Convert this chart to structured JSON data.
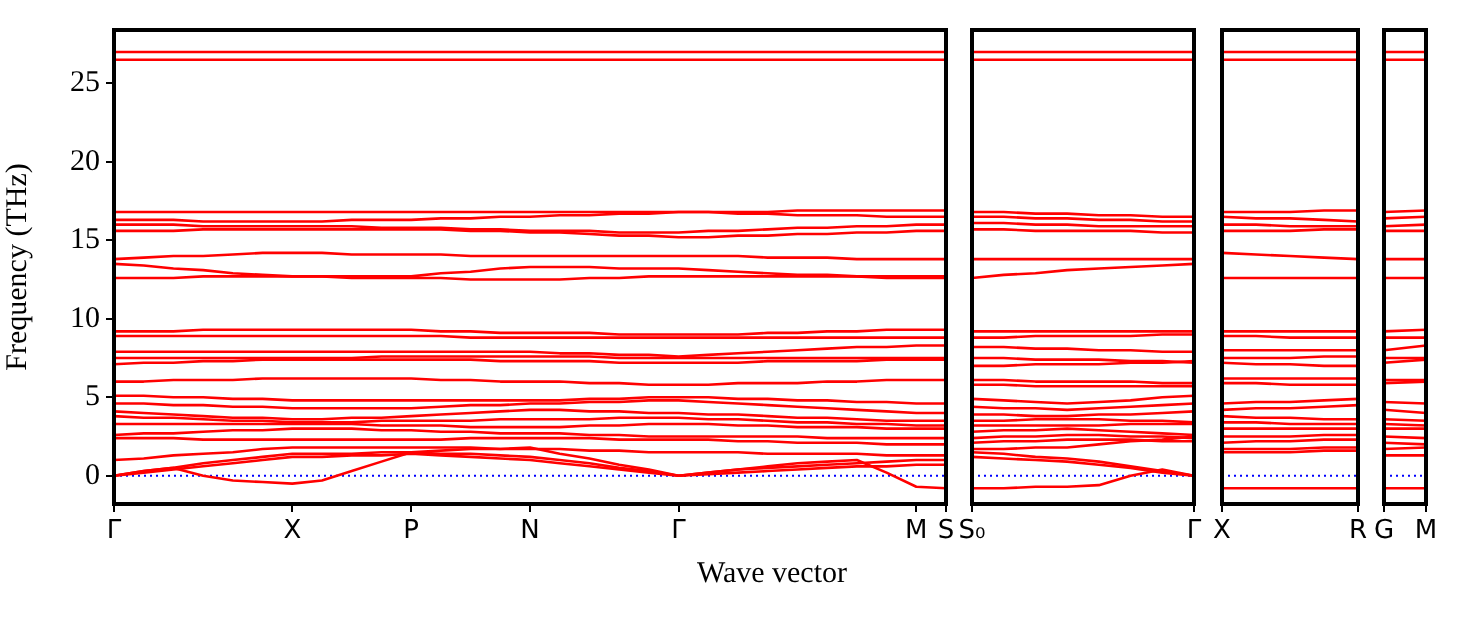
{
  "chart_data": [
    {
      "type": "line",
      "ylabel": "Frequency (THz)",
      "xlabel": "Wave vector",
      "marker": "none",
      "line_style": "solid",
      "ylim": [
        -1.8,
        28.4
      ],
      "yticks": [
        0,
        5,
        10,
        15,
        20,
        25
      ],
      "categories": [
        "Γ",
        null,
        null,
        null,
        null,
        null,
        "X",
        null,
        null,
        null,
        "P",
        null,
        null,
        null,
        "N",
        null,
        null,
        null,
        null,
        "Γ",
        null,
        null,
        null,
        null,
        null,
        null,
        null,
        "M",
        "S"
      ],
      "ref_lines": [
        {
          "axis": "y",
          "value": 0,
          "color": "#0000ff",
          "line_style": "dotted"
        }
      ],
      "series": [
        {
          "color": "#ff0000",
          "values": [
            27.0,
            27.0,
            27.0,
            27.0,
            27.0,
            27.0,
            27.0,
            27.0,
            27.0,
            27.0,
            27.0,
            27.0,
            27.0,
            27.0,
            27.0,
            27.0,
            27.0,
            27.0,
            27.0,
            27.0,
            27.0,
            27.0,
            27.0,
            27.0,
            27.0,
            27.0,
            27.0,
            27.0,
            27.0
          ]
        },
        {
          "color": "#ff0000",
          "values": [
            26.5,
            26.5,
            26.5,
            26.5,
            26.5,
            26.5,
            26.5,
            26.5,
            26.5,
            26.5,
            26.5,
            26.5,
            26.5,
            26.5,
            26.5,
            26.5,
            26.5,
            26.5,
            26.5,
            26.5,
            26.5,
            26.5,
            26.5,
            26.5,
            26.5,
            26.5,
            26.5,
            26.5,
            26.5
          ]
        },
        {
          "color": "#ff0000",
          "values": [
            16.8,
            16.8,
            16.8,
            16.8,
            16.8,
            16.8,
            16.8,
            16.8,
            16.8,
            16.8,
            16.8,
            16.8,
            16.8,
            16.8,
            16.8,
            16.8,
            16.8,
            16.8,
            16.8,
            16.8,
            16.8,
            16.8,
            16.8,
            16.9,
            16.9,
            16.9,
            16.9,
            16.9,
            16.9
          ]
        },
        {
          "color": "#ff0000",
          "values": [
            16.3,
            16.3,
            16.3,
            16.2,
            16.2,
            16.2,
            16.2,
            16.2,
            16.3,
            16.3,
            16.3,
            16.4,
            16.4,
            16.5,
            16.5,
            16.6,
            16.6,
            16.7,
            16.7,
            16.8,
            16.8,
            16.7,
            16.7,
            16.6,
            16.6,
            16.6,
            16.5,
            16.5,
            16.5
          ]
        },
        {
          "color": "#ff0000",
          "values": [
            16.0,
            16.0,
            16.0,
            15.9,
            15.9,
            15.9,
            15.9,
            15.9,
            15.9,
            15.8,
            15.8,
            15.8,
            15.7,
            15.7,
            15.6,
            15.6,
            15.6,
            15.5,
            15.5,
            15.5,
            15.6,
            15.6,
            15.7,
            15.8,
            15.8,
            15.9,
            15.9,
            16.0,
            16.0
          ]
        },
        {
          "color": "#ff0000",
          "values": [
            15.6,
            15.6,
            15.6,
            15.7,
            15.7,
            15.7,
            15.7,
            15.7,
            15.7,
            15.7,
            15.7,
            15.7,
            15.6,
            15.6,
            15.5,
            15.5,
            15.4,
            15.3,
            15.3,
            15.2,
            15.2,
            15.3,
            15.3,
            15.4,
            15.4,
            15.5,
            15.5,
            15.6,
            15.6
          ]
        },
        {
          "color": "#ff0000",
          "values": [
            13.8,
            13.9,
            14.0,
            14.0,
            14.1,
            14.2,
            14.2,
            14.2,
            14.1,
            14.1,
            14.1,
            14.1,
            14.0,
            14.0,
            14.0,
            14.0,
            14.0,
            14.0,
            14.0,
            14.0,
            14.0,
            14.0,
            13.9,
            13.9,
            13.9,
            13.8,
            13.8,
            13.8,
            13.8
          ]
        },
        {
          "color": "#ff0000",
          "values": [
            13.5,
            13.4,
            13.2,
            13.1,
            12.9,
            12.8,
            12.7,
            12.7,
            12.7,
            12.7,
            12.7,
            12.9,
            13.0,
            13.2,
            13.3,
            13.3,
            13.3,
            13.2,
            13.2,
            13.2,
            13.1,
            13.0,
            12.9,
            12.8,
            12.8,
            12.7,
            12.6,
            12.6,
            12.6
          ]
        },
        {
          "color": "#ff0000",
          "values": [
            12.6,
            12.6,
            12.6,
            12.7,
            12.7,
            12.7,
            12.7,
            12.7,
            12.6,
            12.6,
            12.6,
            12.6,
            12.5,
            12.5,
            12.5,
            12.5,
            12.6,
            12.6,
            12.7,
            12.7,
            12.7,
            12.7,
            12.7,
            12.7,
            12.7,
            12.7,
            12.7,
            12.7,
            12.7
          ]
        },
        {
          "color": "#ff0000",
          "values": [
            9.2,
            9.2,
            9.2,
            9.3,
            9.3,
            9.3,
            9.3,
            9.3,
            9.3,
            9.3,
            9.3,
            9.2,
            9.2,
            9.1,
            9.1,
            9.1,
            9.1,
            9.0,
            9.0,
            9.0,
            9.0,
            9.0,
            9.1,
            9.1,
            9.2,
            9.2,
            9.3,
            9.3,
            9.3
          ]
        },
        {
          "color": "#ff0000",
          "values": [
            8.9,
            8.9,
            8.9,
            8.9,
            8.9,
            8.9,
            8.9,
            8.9,
            8.9,
            8.9,
            8.9,
            8.9,
            8.8,
            8.8,
            8.8,
            8.8,
            8.8,
            8.8,
            8.8,
            8.8,
            8.8,
            8.8,
            8.8,
            8.8,
            8.8,
            8.8,
            8.8,
            8.8,
            8.8
          ]
        },
        {
          "color": "#ff0000",
          "values": [
            7.9,
            7.9,
            7.9,
            7.9,
            7.9,
            7.9,
            7.9,
            7.9,
            7.9,
            7.9,
            7.9,
            7.9,
            7.9,
            7.9,
            7.9,
            7.8,
            7.8,
            7.7,
            7.7,
            7.6,
            7.7,
            7.8,
            7.9,
            8.0,
            8.1,
            8.2,
            8.2,
            8.3,
            8.3
          ]
        },
        {
          "color": "#ff0000",
          "values": [
            7.5,
            7.5,
            7.5,
            7.5,
            7.5,
            7.5,
            7.5,
            7.5,
            7.5,
            7.6,
            7.6,
            7.6,
            7.6,
            7.6,
            7.6,
            7.6,
            7.6,
            7.5,
            7.5,
            7.5,
            7.5,
            7.5,
            7.5,
            7.5,
            7.5,
            7.5,
            7.5,
            7.5,
            7.5
          ]
        },
        {
          "color": "#ff0000",
          "values": [
            7.1,
            7.2,
            7.2,
            7.3,
            7.3,
            7.4,
            7.4,
            7.4,
            7.4,
            7.4,
            7.4,
            7.4,
            7.4,
            7.3,
            7.3,
            7.3,
            7.3,
            7.2,
            7.2,
            7.2,
            7.2,
            7.2,
            7.3,
            7.3,
            7.3,
            7.3,
            7.4,
            7.4,
            7.4
          ]
        },
        {
          "color": "#ff0000",
          "values": [
            6.0,
            6.0,
            6.1,
            6.1,
            6.1,
            6.2,
            6.2,
            6.2,
            6.2,
            6.2,
            6.2,
            6.1,
            6.1,
            6.0,
            6.0,
            6.0,
            5.9,
            5.9,
            5.8,
            5.8,
            5.8,
            5.9,
            5.9,
            5.9,
            6.0,
            6.0,
            6.1,
            6.1,
            6.1
          ]
        },
        {
          "color": "#ff0000",
          "values": [
            5.1,
            5.1,
            5.0,
            5.0,
            4.9,
            4.9,
            4.8,
            4.8,
            4.8,
            4.8,
            4.8,
            4.8,
            4.8,
            4.8,
            4.8,
            4.8,
            4.9,
            4.9,
            5.0,
            5.0,
            5.0,
            4.9,
            4.9,
            4.8,
            4.8,
            4.7,
            4.7,
            4.6,
            4.6
          ]
        },
        {
          "color": "#ff0000",
          "values": [
            4.6,
            4.6,
            4.5,
            4.5,
            4.4,
            4.4,
            4.3,
            4.3,
            4.3,
            4.3,
            4.3,
            4.4,
            4.5,
            4.5,
            4.6,
            4.6,
            4.7,
            4.7,
            4.8,
            4.8,
            4.7,
            4.6,
            4.5,
            4.4,
            4.3,
            4.2,
            4.1,
            4.0,
            4.0
          ]
        },
        {
          "color": "#ff0000",
          "values": [
            4.1,
            4.0,
            3.9,
            3.8,
            3.7,
            3.7,
            3.6,
            3.6,
            3.7,
            3.7,
            3.8,
            3.9,
            4.0,
            4.1,
            4.2,
            4.2,
            4.1,
            4.1,
            4.0,
            4.0,
            3.9,
            3.9,
            3.8,
            3.7,
            3.7,
            3.6,
            3.5,
            3.5,
            3.5
          ]
        },
        {
          "color": "#ff0000",
          "values": [
            3.8,
            3.7,
            3.7,
            3.6,
            3.5,
            3.5,
            3.4,
            3.4,
            3.4,
            3.5,
            3.5,
            3.5,
            3.5,
            3.6,
            3.6,
            3.6,
            3.6,
            3.7,
            3.7,
            3.7,
            3.6,
            3.6,
            3.5,
            3.4,
            3.4,
            3.3,
            3.3,
            3.2,
            3.2
          ]
        },
        {
          "color": "#ff0000",
          "values": [
            3.3,
            3.3,
            3.3,
            3.3,
            3.3,
            3.3,
            3.3,
            3.3,
            3.3,
            3.2,
            3.2,
            3.2,
            3.1,
            3.1,
            3.1,
            3.1,
            3.2,
            3.2,
            3.3,
            3.3,
            3.3,
            3.2,
            3.2,
            3.1,
            3.1,
            3.1,
            3.0,
            3.0,
            3.0
          ]
        },
        {
          "color": "#ff0000",
          "values": [
            2.6,
            2.7,
            2.7,
            2.8,
            2.9,
            2.9,
            3.0,
            3.0,
            3.0,
            2.9,
            2.9,
            2.8,
            2.8,
            2.7,
            2.7,
            2.7,
            2.6,
            2.6,
            2.5,
            2.5,
            2.5,
            2.5,
            2.5,
            2.5,
            2.4,
            2.4,
            2.4,
            2.4,
            2.4
          ]
        },
        {
          "color": "#ff0000",
          "values": [
            2.4,
            2.4,
            2.4,
            2.3,
            2.3,
            2.3,
            2.3,
            2.3,
            2.3,
            2.3,
            2.3,
            2.3,
            2.4,
            2.4,
            2.4,
            2.4,
            2.4,
            2.3,
            2.3,
            2.3,
            2.3,
            2.2,
            2.2,
            2.1,
            2.1,
            2.1,
            2.0,
            2.0,
            2.0
          ]
        },
        {
          "color": "#ff0000",
          "values": [
            1.0,
            1.1,
            1.3,
            1.4,
            1.5,
            1.7,
            1.8,
            1.8,
            1.8,
            1.8,
            1.8,
            1.8,
            1.8,
            1.7,
            1.7,
            1.7,
            1.6,
            1.6,
            1.5,
            1.5,
            1.5,
            1.5,
            1.4,
            1.4,
            1.4,
            1.4,
            1.3,
            1.3,
            1.3
          ]
        },
        {
          "color": "#ff0000",
          "values": [
            0,
            0.3,
            0.5,
            0.8,
            1.0,
            1.2,
            1.4,
            1.4,
            1.4,
            1.5,
            1.5,
            1.4,
            1.4,
            1.3,
            1.2,
            1.0,
            0.8,
            0.5,
            0.3,
            0,
            0.2,
            0.4,
            0.5,
            0.6,
            0.7,
            0.8,
            0.9,
            1.0,
            1.0
          ]
        },
        {
          "color": "#ff0000",
          "values": [
            0,
            0.2,
            0.4,
            0.6,
            0.8,
            1.0,
            1.2,
            1.2,
            1.3,
            1.3,
            1.4,
            1.3,
            1.2,
            1.1,
            1.0,
            0.8,
            0.6,
            0.4,
            0.2,
            0,
            0.1,
            0.2,
            0.3,
            0.4,
            0.5,
            0.6,
            0.6,
            0.7,
            0.7
          ]
        },
        {
          "color": "#ff0000",
          "values": [
            0,
            0.3,
            0.5,
            0.0,
            -0.3,
            -0.4,
            -0.5,
            -0.3,
            0.3,
            0.9,
            1.5,
            1.6,
            1.7,
            1.7,
            1.8,
            1.4,
            1.1,
            0.7,
            0.4,
            0,
            0.2,
            0.4,
            0.6,
            0.8,
            0.9,
            1.0,
            0.2,
            -0.7,
            -0.8
          ]
        }
      ]
    },
    {
      "type": "line",
      "marker": "none",
      "line_style": "solid",
      "tick_labels": "x",
      "ylim": [
        -1.8,
        28.4
      ],
      "categories": [
        "S₀",
        null,
        null,
        null,
        null,
        null,
        null,
        "Γ"
      ],
      "ref_lines": [
        {
          "axis": "y",
          "value": 0,
          "color": "#0000ff",
          "line_style": "dotted"
        }
      ],
      "series": [
        {
          "color": "#ff0000",
          "values": [
            27.0,
            27.0,
            27.0,
            27.0,
            27.0,
            27.0,
            27.0,
            27.0
          ]
        },
        {
          "color": "#ff0000",
          "values": [
            26.5,
            26.5,
            26.5,
            26.5,
            26.5,
            26.5,
            26.5,
            26.5
          ]
        },
        {
          "color": "#ff0000",
          "values": [
            16.8,
            16.8,
            16.7,
            16.7,
            16.6,
            16.6,
            16.5,
            16.5
          ]
        },
        {
          "color": "#ff0000",
          "values": [
            16.5,
            16.5,
            16.4,
            16.4,
            16.3,
            16.3,
            16.2,
            16.2
          ]
        },
        {
          "color": "#ff0000",
          "values": [
            16.1,
            16.1,
            16.0,
            16.0,
            15.9,
            15.9,
            15.9,
            15.9
          ]
        },
        {
          "color": "#ff0000",
          "values": [
            15.7,
            15.7,
            15.6,
            15.6,
            15.6,
            15.6,
            15.5,
            15.5
          ]
        },
        {
          "color": "#ff0000",
          "values": [
            13.8,
            13.8,
            13.8,
            13.8,
            13.8,
            13.8,
            13.8,
            13.8
          ]
        },
        {
          "color": "#ff0000",
          "values": [
            12.6,
            12.8,
            12.9,
            13.1,
            13.2,
            13.3,
            13.4,
            13.5
          ]
        },
        {
          "color": "#ff0000",
          "values": [
            9.2,
            9.2,
            9.2,
            9.2,
            9.2,
            9.2,
            9.2,
            9.2
          ]
        },
        {
          "color": "#ff0000",
          "values": [
            8.8,
            8.8,
            8.9,
            8.9,
            8.9,
            8.9,
            9.0,
            9.0
          ]
        },
        {
          "color": "#ff0000",
          "values": [
            8.2,
            8.2,
            8.1,
            8.1,
            8.0,
            8.0,
            7.9,
            7.9
          ]
        },
        {
          "color": "#ff0000",
          "values": [
            7.5,
            7.5,
            7.4,
            7.4,
            7.4,
            7.3,
            7.3,
            7.2
          ]
        },
        {
          "color": "#ff0000",
          "values": [
            7.0,
            7.0,
            7.1,
            7.1,
            7.1,
            7.2,
            7.2,
            7.3
          ]
        },
        {
          "color": "#ff0000",
          "values": [
            6.1,
            6.1,
            6.0,
            6.0,
            6.0,
            6.0,
            5.9,
            5.9
          ]
        },
        {
          "color": "#ff0000",
          "values": [
            5.8,
            5.8,
            5.7,
            5.7,
            5.7,
            5.7,
            5.7,
            5.7
          ]
        },
        {
          "color": "#ff0000",
          "values": [
            4.9,
            4.8,
            4.7,
            4.6,
            4.7,
            4.8,
            5.0,
            5.1
          ]
        },
        {
          "color": "#ff0000",
          "values": [
            4.4,
            4.3,
            4.3,
            4.2,
            4.3,
            4.4,
            4.5,
            4.6
          ]
        },
        {
          "color": "#ff0000",
          "values": [
            3.9,
            3.9,
            3.8,
            3.8,
            3.9,
            3.9,
            4.0,
            4.1
          ]
        },
        {
          "color": "#ff0000",
          "values": [
            3.5,
            3.5,
            3.6,
            3.6,
            3.6,
            3.5,
            3.5,
            3.4
          ]
        },
        {
          "color": "#ff0000",
          "values": [
            3.2,
            3.2,
            3.2,
            3.2,
            3.2,
            3.3,
            3.3,
            3.3
          ]
        },
        {
          "color": "#ff0000",
          "values": [
            2.8,
            2.9,
            2.9,
            3.0,
            2.9,
            2.8,
            2.7,
            2.6
          ]
        },
        {
          "color": "#ff0000",
          "values": [
            2.4,
            2.5,
            2.5,
            2.6,
            2.6,
            2.5,
            2.5,
            2.4
          ]
        },
        {
          "color": "#ff0000",
          "values": [
            2.1,
            2.2,
            2.2,
            2.3,
            2.3,
            2.3,
            2.2,
            2.2
          ]
        },
        {
          "color": "#ff0000",
          "values": [
            1.7,
            1.7,
            1.8,
            1.8,
            2.0,
            2.2,
            2.3,
            2.5
          ]
        },
        {
          "color": "#ff0000",
          "values": [
            1.5,
            1.4,
            1.2,
            1.1,
            0.9,
            0.6,
            0.3,
            0
          ]
        },
        {
          "color": "#ff0000",
          "values": [
            1.2,
            1.1,
            1.0,
            0.9,
            0.7,
            0.5,
            0.2,
            0
          ]
        },
        {
          "color": "#ff0000",
          "values": [
            -0.8,
            -0.8,
            -0.7,
            -0.7,
            -0.6,
            0,
            0.4,
            0
          ]
        }
      ]
    },
    {
      "type": "line",
      "marker": "none",
      "line_style": "solid",
      "tick_labels": "x",
      "ylim": [
        -1.8,
        28.4
      ],
      "categories": [
        "X",
        null,
        null,
        null,
        "R"
      ],
      "ref_lines": [
        {
          "axis": "y",
          "value": 0,
          "color": "#0000ff",
          "line_style": "dotted"
        }
      ],
      "series": [
        {
          "color": "#ff0000",
          "values": [
            27.0,
            27.0,
            27.0,
            27.0,
            27.0
          ]
        },
        {
          "color": "#ff0000",
          "values": [
            26.5,
            26.5,
            26.5,
            26.5,
            26.5
          ]
        },
        {
          "color": "#ff0000",
          "values": [
            16.8,
            16.8,
            16.8,
            16.9,
            16.9
          ]
        },
        {
          "color": "#ff0000",
          "values": [
            16.5,
            16.4,
            16.4,
            16.3,
            16.2
          ]
        },
        {
          "color": "#ff0000",
          "values": [
            16.0,
            16.0,
            15.9,
            15.9,
            15.9
          ]
        },
        {
          "color": "#ff0000",
          "values": [
            15.6,
            15.6,
            15.6,
            15.7,
            15.7
          ]
        },
        {
          "color": "#ff0000",
          "values": [
            14.2,
            14.1,
            14.0,
            13.9,
            13.8
          ]
        },
        {
          "color": "#ff0000",
          "values": [
            12.6,
            12.6,
            12.6,
            12.6,
            12.6
          ]
        },
        {
          "color": "#ff0000",
          "values": [
            9.2,
            9.2,
            9.2,
            9.2,
            9.2
          ]
        },
        {
          "color": "#ff0000",
          "values": [
            8.9,
            8.9,
            8.8,
            8.8,
            8.8
          ]
        },
        {
          "color": "#ff0000",
          "values": [
            8.0,
            8.0,
            8.0,
            8.0,
            8.0
          ]
        },
        {
          "color": "#ff0000",
          "values": [
            7.5,
            7.5,
            7.5,
            7.6,
            7.6
          ]
        },
        {
          "color": "#ff0000",
          "values": [
            7.2,
            7.1,
            7.1,
            7.0,
            7.0
          ]
        },
        {
          "color": "#ff0000",
          "values": [
            6.2,
            6.2,
            6.2,
            6.2,
            6.2
          ]
        },
        {
          "color": "#ff0000",
          "values": [
            5.9,
            5.9,
            5.8,
            5.8,
            5.8
          ]
        },
        {
          "color": "#ff0000",
          "values": [
            4.6,
            4.7,
            4.7,
            4.8,
            4.9
          ]
        },
        {
          "color": "#ff0000",
          "values": [
            4.2,
            4.3,
            4.3,
            4.4,
            4.5
          ]
        },
        {
          "color": "#ff0000",
          "values": [
            3.8,
            3.7,
            3.7,
            3.6,
            3.6
          ]
        },
        {
          "color": "#ff0000",
          "values": [
            3.4,
            3.4,
            3.3,
            3.3,
            3.3
          ]
        },
        {
          "color": "#ff0000",
          "values": [
            3.0,
            3.0,
            3.0,
            3.0,
            3.0
          ]
        },
        {
          "color": "#ff0000",
          "values": [
            2.5,
            2.5,
            2.5,
            2.6,
            2.6
          ]
        },
        {
          "color": "#ff0000",
          "values": [
            2.1,
            2.2,
            2.2,
            2.3,
            2.3
          ]
        },
        {
          "color": "#ff0000",
          "values": [
            1.7,
            1.7,
            1.7,
            1.8,
            1.8
          ]
        },
        {
          "color": "#ff0000",
          "values": [
            1.5,
            1.5,
            1.5,
            1.6,
            1.6
          ]
        },
        {
          "color": "#ff0000",
          "values": [
            -0.8,
            -0.8,
            -0.8,
            -0.8,
            -0.8
          ]
        }
      ]
    },
    {
      "type": "line",
      "marker": "none",
      "line_style": "solid",
      "tick_labels": "x",
      "ylim": [
        -1.8,
        28.4
      ],
      "categories": [
        "G",
        "M"
      ],
      "ref_lines": [
        {
          "axis": "y",
          "value": 0,
          "color": "#0000ff",
          "line_style": "dotted"
        }
      ],
      "series": [
        {
          "color": "#ff0000",
          "values": [
            27.0,
            27.0
          ]
        },
        {
          "color": "#ff0000",
          "values": [
            26.5,
            26.5
          ]
        },
        {
          "color": "#ff0000",
          "values": [
            16.8,
            16.9
          ]
        },
        {
          "color": "#ff0000",
          "values": [
            16.4,
            16.5
          ]
        },
        {
          "color": "#ff0000",
          "values": [
            15.9,
            16.0
          ]
        },
        {
          "color": "#ff0000",
          "values": [
            15.6,
            15.6
          ]
        },
        {
          "color": "#ff0000",
          "values": [
            13.8,
            13.8
          ]
        },
        {
          "color": "#ff0000",
          "values": [
            12.6,
            12.6
          ]
        },
        {
          "color": "#ff0000",
          "values": [
            9.2,
            9.3
          ]
        },
        {
          "color": "#ff0000",
          "values": [
            8.8,
            8.8
          ]
        },
        {
          "color": "#ff0000",
          "values": [
            8.0,
            8.3
          ]
        },
        {
          "color": "#ff0000",
          "values": [
            7.5,
            7.5
          ]
        },
        {
          "color": "#ff0000",
          "values": [
            7.2,
            7.4
          ]
        },
        {
          "color": "#ff0000",
          "values": [
            6.1,
            6.1
          ]
        },
        {
          "color": "#ff0000",
          "values": [
            5.9,
            6.0
          ]
        },
        {
          "color": "#ff0000",
          "values": [
            4.7,
            4.6
          ]
        },
        {
          "color": "#ff0000",
          "values": [
            4.2,
            4.0
          ]
        },
        {
          "color": "#ff0000",
          "values": [
            3.6,
            3.5
          ]
        },
        {
          "color": "#ff0000",
          "values": [
            3.3,
            3.2
          ]
        },
        {
          "color": "#ff0000",
          "values": [
            3.0,
            3.0
          ]
        },
        {
          "color": "#ff0000",
          "values": [
            2.5,
            2.4
          ]
        },
        {
          "color": "#ff0000",
          "values": [
            2.1,
            2.0
          ]
        },
        {
          "color": "#ff0000",
          "values": [
            1.7,
            1.8
          ]
        },
        {
          "color": "#ff0000",
          "values": [
            1.3,
            1.3
          ]
        },
        {
          "color": "#ff0000",
          "values": [
            -0.8,
            -0.8
          ]
        }
      ]
    }
  ]
}
